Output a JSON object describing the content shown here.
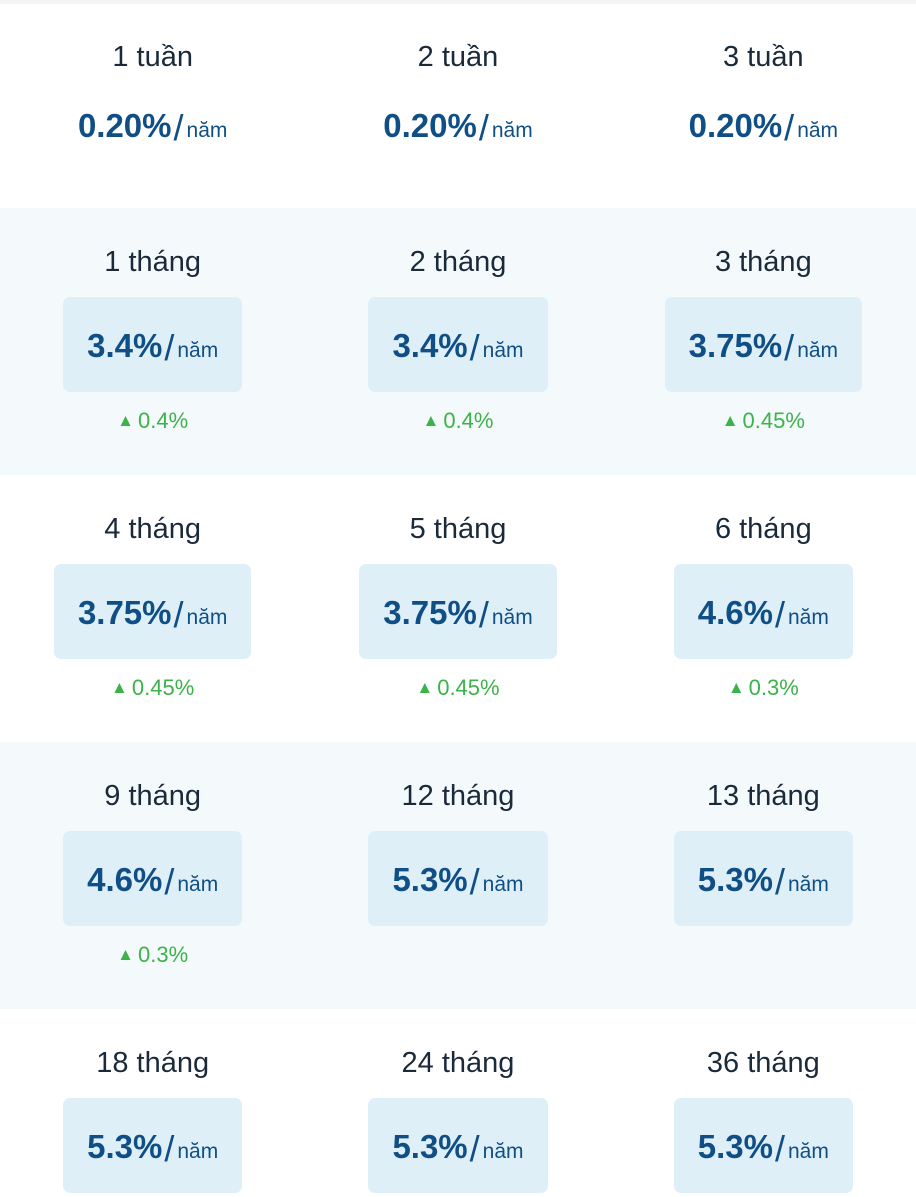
{
  "unit": "năm",
  "rows": [
    {
      "items": [
        {
          "term": "1 tuần",
          "rate": "0.20%"
        },
        {
          "term": "2 tuần",
          "rate": "0.20%"
        },
        {
          "term": "3 tuần",
          "rate": "0.20%"
        }
      ]
    },
    {
      "items": [
        {
          "term": "1 tháng",
          "rate": "3.4%",
          "change": "0.4%"
        },
        {
          "term": "2 tháng",
          "rate": "3.4%",
          "change": "0.4%"
        },
        {
          "term": "3 tháng",
          "rate": "3.75%",
          "change": "0.45%"
        }
      ]
    },
    {
      "items": [
        {
          "term": "4 tháng",
          "rate": "3.75%",
          "change": "0.45%"
        },
        {
          "term": "5 tháng",
          "rate": "3.75%",
          "change": "0.45%"
        },
        {
          "term": "6 tháng",
          "rate": "4.6%",
          "change": "0.3%"
        }
      ]
    },
    {
      "items": [
        {
          "term": "9 tháng",
          "rate": "4.6%",
          "change": "0.3%"
        },
        {
          "term": "12 tháng",
          "rate": "5.3%"
        },
        {
          "term": "13 tháng",
          "rate": "5.3%"
        }
      ]
    },
    {
      "items": [
        {
          "term": "18 tháng",
          "rate": "5.3%"
        },
        {
          "term": "24 tháng",
          "rate": "5.3%"
        },
        {
          "term": "36 tháng",
          "rate": "5.3%"
        }
      ]
    }
  ],
  "colors": {
    "rate": "#0f4f86",
    "up": "#3cb34a",
    "box": "#dfeff8",
    "alt_row": "#f4f9fc"
  }
}
